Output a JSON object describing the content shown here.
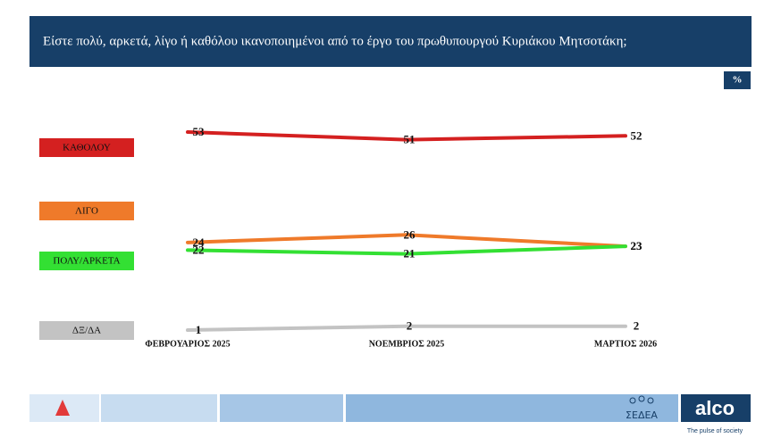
{
  "chart_data": {
    "type": "line",
    "title": "Είστε πολύ, αρκετά, λίγο ή καθόλου ικανοποιημένοι από το έργο του πρωθυπουργού Κυριάκου Μητσοτάκη;",
    "unit": "%",
    "categories": [
      "ΦΕΒΡΟΥΑΡΙΟΣ 2025",
      "ΝΟΕΜΒΡΙΟΣ 2025",
      "ΜΑΡΤΙΟΣ 2026"
    ],
    "series": [
      {
        "name": "ΚΑΘΟΛΟΥ",
        "color": "#d42020",
        "values": [
          53,
          51,
          52
        ]
      },
      {
        "name": "ΛΙΓΟ",
        "color": "#ef7a2a",
        "values": [
          24,
          26,
          23
        ]
      },
      {
        "name": "ΠΟΛΥ/ΑΡΚΕΤΑ",
        "color": "#33e033",
        "values": [
          22,
          21,
          23
        ]
      },
      {
        "name": "ΔΞ/ΔΑ",
        "color": "#c3c3c3",
        "values": [
          1,
          2,
          2
        ]
      }
    ],
    "ylim": [
      0,
      55
    ]
  },
  "footer": {
    "brand": "ΣΕΔΕΑ",
    "logo": "alco",
    "tagline": "The pulse of society"
  }
}
